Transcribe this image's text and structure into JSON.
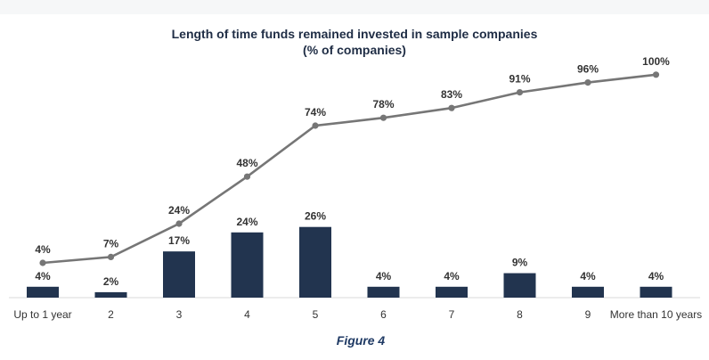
{
  "chart_data": {
    "type": "bar+line",
    "title": "Length of time funds remained invested in sample companies",
    "subtitle": "(% of companies)",
    "categories": [
      "Up to 1 year",
      "2",
      "3",
      "4",
      "5",
      "6",
      "7",
      "8",
      "9",
      "More than 10 years"
    ],
    "series": [
      {
        "type": "bar",
        "values": [
          4,
          2,
          17,
          24,
          26,
          4,
          4,
          9,
          4,
          4
        ],
        "labels": [
          "4%",
          "2%",
          "17%",
          "24%",
          "26%",
          "4%",
          "4%",
          "9%",
          "4%",
          "4%"
        ]
      },
      {
        "type": "line",
        "values": [
          4,
          7,
          24,
          48,
          74,
          78,
          83,
          91,
          96,
          100
        ],
        "labels": [
          "4%",
          "7%",
          "24%",
          "48%",
          "74%",
          "78%",
          "83%",
          "91%",
          "96%",
          "100%"
        ]
      }
    ],
    "colors": {
      "bar": "#22344f",
      "line": "#767676",
      "axis": "#d9d9d9"
    },
    "legend": "none",
    "grid": false
  },
  "caption": "Figure 4"
}
